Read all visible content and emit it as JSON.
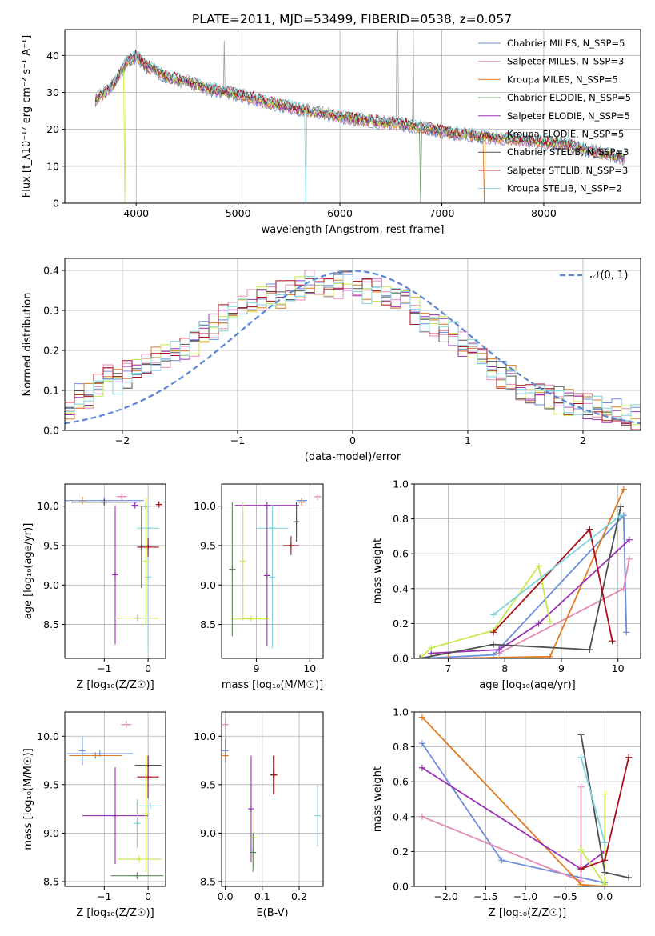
{
  "figure_title": "PLATE=2011, MJD=53499, FIBERID=0538, z=0.057",
  "colors": {
    "c0": "#6a8fdb",
    "c1": "#e58ab5",
    "c2": "#e07b20",
    "c3": "#5a8a5a",
    "c4": "#9b30b5",
    "c5": "#c8e84c",
    "c6": "#505050",
    "c7": "#a80f1a",
    "c8": "#7fd4df",
    "data": "#9e9e9e"
  },
  "chart_data": [
    {
      "id": "spectrum",
      "type": "line",
      "xlabel": "wavelength [Angstrom, rest frame]",
      "ylabel": "Flux [f_λ10⁻¹⁷ erg cm⁻² s⁻¹ A⁻¹]",
      "xlim": [
        3300,
        8950
      ],
      "ylim": [
        0,
        47
      ],
      "xticks": [
        "4000",
        "5000",
        "6000",
        "7000",
        "8000"
      ],
      "yticks": [
        "0",
        "10",
        "20",
        "30",
        "40"
      ],
      "legend": [
        "Chabrier MILES, N_SSP=5",
        "Salpeter MILES, N_SSP=3",
        "Kroupa MILES, N_SSP=5",
        "Chabrier ELODIE, N_SSP=5",
        "Salpeter ELODIE, N_SSP=5",
        "Kroupa ELODIE, N_SSP=5",
        "Chabrier STELIB, N_SSP=3",
        "Salpeter STELIB, N_SSP=3",
        "Kroupa STELIB, N_SSP=2"
      ],
      "legend_position": "upper right",
      "continuum": [
        [
          3600,
          28
        ],
        [
          3700,
          30
        ],
        [
          3800,
          33
        ],
        [
          3900,
          38
        ],
        [
          4000,
          40
        ],
        [
          4100,
          37
        ],
        [
          4200,
          36
        ],
        [
          4300,
          34
        ],
        [
          4500,
          33
        ],
        [
          4700,
          31
        ],
        [
          4900,
          30
        ],
        [
          5200,
          28
        ],
        [
          5500,
          26
        ],
        [
          5800,
          24.5
        ],
        [
          6100,
          23
        ],
        [
          6400,
          22
        ],
        [
          6600,
          21.5
        ],
        [
          6800,
          20.5
        ],
        [
          7100,
          19
        ],
        [
          7400,
          18
        ],
        [
          7800,
          17
        ],
        [
          8200,
          16
        ],
        [
          8500,
          14
        ],
        [
          8800,
          12
        ]
      ]
    },
    {
      "id": "residuals",
      "type": "line",
      "xlabel": "(data-model)/error",
      "ylabel": "Normed distribution",
      "xlim": [
        -2.5,
        2.5
      ],
      "ylim": [
        0,
        0.43
      ],
      "xticks": [
        "−2",
        "−1",
        "0",
        "1",
        "2"
      ],
      "yticks": [
        "0.0",
        "0.1",
        "0.2",
        "0.3",
        "0.4"
      ],
      "legend": [
        "𝒩(0, 1)"
      ],
      "legend_position": "upper right",
      "histogram_mean": [
        0.055,
        0.085,
        0.09,
        0.11,
        0.13,
        0.12,
        0.14,
        0.16,
        0.17,
        0.18,
        0.19,
        0.2,
        0.21,
        0.22,
        0.24,
        0.26,
        0.28,
        0.29,
        0.31,
        0.32,
        0.33,
        0.34,
        0.34,
        0.35,
        0.36,
        0.37,
        0.36,
        0.35,
        0.36,
        0.37,
        0.36,
        0.35,
        0.35,
        0.34,
        0.33,
        0.32,
        0.3,
        0.28,
        0.27,
        0.25,
        0.24,
        0.22,
        0.2,
        0.18,
        0.16,
        0.14,
        0.13,
        0.11,
        0.1,
        0.09,
        0.08,
        0.075,
        0.07,
        0.065,
        0.06,
        0.055,
        0.05,
        0.045,
        0.04,
        0.03
      ]
    },
    {
      "id": "age-metallicity",
      "type": "scatter",
      "xlabel": "Z [log₁₀(Z/Z☉)]",
      "ylabel": "age  [log₁₀(age/yr)]",
      "xlim": [
        -1.9,
        0.4
      ],
      "ylim": [
        8.07,
        10.28
      ],
      "xticks": [
        "−1",
        "0"
      ],
      "yticks": [
        "8.5",
        "9.0",
        "9.5",
        "10.0"
      ],
      "points": [
        {
          "x": -1.5,
          "y": 10.07,
          "xerr": 0.1,
          "yerr": 0.05,
          "c": "c2"
        },
        {
          "x": -0.6,
          "y": 10.12,
          "xerr": 0.12,
          "yerr": 0.02,
          "c": "c1"
        },
        {
          "x": -1.0,
          "y": 10.07,
          "xerr": 0.9,
          "yerr": 0.02,
          "c": "c0"
        },
        {
          "x": -1.0,
          "y": 10.05,
          "xerr": 0.75,
          "yerr": 0.0,
          "c": "c6"
        },
        {
          "x": -0.75,
          "y": 9.13,
          "xerr": 0.0,
          "yerr": 0.88,
          "c": "c4"
        },
        {
          "x": -0.3,
          "y": 10.01,
          "xerr": 0.0,
          "yerr": 0.0,
          "c": "c4"
        },
        {
          "x": -0.05,
          "y": 10.0,
          "xerr": 0.3,
          "yerr": 0.02,
          "c": "c6"
        },
        {
          "x": 0.25,
          "y": 10.02,
          "xerr": 0.05,
          "yerr": 0.0,
          "c": "c7"
        },
        {
          "x": 0.0,
          "y": 9.72,
          "xerr": 0.25,
          "yerr": 0.28,
          "c": "c8"
        },
        {
          "x": 0.0,
          "y": 9.1,
          "xerr": 0.0,
          "yerr": 0.93,
          "c": "c8"
        },
        {
          "x": -0.15,
          "y": 9.48,
          "xerr": 0.05,
          "yerr": 0.52,
          "c": "c6"
        },
        {
          "x": 0.0,
          "y": 9.48,
          "xerr": 0.25,
          "yerr": 0.12,
          "c": "c7"
        },
        {
          "x": -0.25,
          "y": 8.58,
          "xerr": 0.5,
          "yerr": 0.0,
          "c": "c5"
        },
        {
          "x": -0.05,
          "y": 9.3,
          "xerr": 0.0,
          "yerr": 0.8,
          "c": "c5"
        }
      ]
    },
    {
      "id": "age-mass",
      "type": "scatter",
      "xlabel": "mass [log₁₀(M/M☉)]",
      "ylabel": "",
      "xlim": [
        8.35,
        10.25
      ],
      "ylim": [
        8.07,
        10.28
      ],
      "xticks": [
        "9",
        "10"
      ],
      "yticks": [
        "8.5",
        "9.0",
        "9.5",
        "10.0"
      ],
      "points": [
        {
          "x": 10.15,
          "y": 10.12,
          "xerr": 0.05,
          "yerr": 0.02,
          "c": "c1"
        },
        {
          "x": 9.85,
          "y": 10.07,
          "xerr": 0.1,
          "yerr": 0.03,
          "c": "c0"
        },
        {
          "x": 9.2,
          "y": 10.01,
          "xerr": 0.6,
          "yerr": 0.0,
          "c": "c4"
        },
        {
          "x": 9.85,
          "y": 10.05,
          "xerr": 0.0,
          "yerr": 0.05,
          "c": "c2"
        },
        {
          "x": 9.75,
          "y": 9.8,
          "xerr": 0.05,
          "yerr": 0.25,
          "c": "c6"
        },
        {
          "x": 9.65,
          "y": 9.5,
          "xerr": 0.15,
          "yerr": 0.12,
          "c": "c7"
        },
        {
          "x": 9.3,
          "y": 9.72,
          "xerr": 0.3,
          "yerr": 0.3,
          "c": "c8"
        },
        {
          "x": 9.2,
          "y": 9.12,
          "xerr": 0.0,
          "yerr": 0.9,
          "c": "c4"
        },
        {
          "x": 8.9,
          "y": 8.57,
          "xerr": 0.35,
          "yerr": 0.0,
          "c": "c5"
        },
        {
          "x": 8.55,
          "y": 9.2,
          "xerr": 0.0,
          "yerr": 0.85,
          "c": "c3"
        },
        {
          "x": 8.75,
          "y": 9.3,
          "xerr": 0.0,
          "yerr": 0.75,
          "c": "c5"
        },
        {
          "x": 9.3,
          "y": 9.1,
          "xerr": 0.0,
          "yerr": 0.9,
          "c": "c8"
        }
      ]
    },
    {
      "id": "weight-age",
      "type": "line",
      "xlabel": "age  [log₁₀(age/yr)]",
      "ylabel": "mass weight",
      "xlim": [
        6.4,
        10.4
      ],
      "ylim": [
        0,
        1.0
      ],
      "xticks": [
        "7",
        "8",
        "9",
        "10"
      ],
      "yticks": [
        "0.0",
        "0.2",
        "0.4",
        "0.6",
        "0.8",
        "1.0"
      ],
      "series": [
        {
          "c": "c0",
          "x": [
            6.5,
            7.8,
            10.1,
            10.15
          ],
          "y": [
            0.0,
            0.02,
            0.82,
            0.15
          ]
        },
        {
          "c": "c1",
          "x": [
            7.9,
            10.1,
            10.2
          ],
          "y": [
            0.03,
            0.4,
            0.57
          ]
        },
        {
          "c": "c2",
          "x": [
            7.0,
            8.8,
            10.1
          ],
          "y": [
            0.0,
            0.01,
            0.97
          ]
        },
        {
          "c": "c4",
          "x": [
            6.7,
            7.9,
            8.6,
            10.2
          ],
          "y": [
            0.03,
            0.05,
            0.2,
            0.68
          ]
        },
        {
          "c": "c5",
          "x": [
            6.5,
            6.7,
            7.8,
            8.6,
            8.8
          ],
          "y": [
            0.0,
            0.06,
            0.16,
            0.53,
            0.21
          ]
        },
        {
          "c": "c6",
          "x": [
            6.5,
            7.8,
            9.5,
            10.05
          ],
          "y": [
            0.0,
            0.08,
            0.05,
            0.87
          ]
        },
        {
          "c": "c7",
          "x": [
            7.8,
            9.5,
            9.9
          ],
          "y": [
            0.15,
            0.74,
            0.1
          ]
        },
        {
          "c": "c8",
          "x": [
            7.8,
            10.05
          ],
          "y": [
            0.25,
            0.82
          ]
        }
      ]
    },
    {
      "id": "mass-metallicity",
      "type": "scatter",
      "xlabel": "Z [log₁₀(Z/Z☉)]",
      "ylabel": "mass [log₁₀(M/M☉)]",
      "xlim": [
        -1.9,
        0.4
      ],
      "ylim": [
        8.45,
        10.25
      ],
      "xticks": [
        "−1",
        "0"
      ],
      "yticks": [
        "8.5",
        "9.0",
        "9.5",
        "10.0"
      ],
      "points": [
        {
          "x": -0.5,
          "y": 10.12,
          "xerr": 0.12,
          "yerr": 0.04,
          "c": "c1"
        },
        {
          "x": -1.5,
          "y": 9.85,
          "xerr": 0.05,
          "yerr": 0.15,
          "c": "c0"
        },
        {
          "x": -1.1,
          "y": 9.82,
          "xerr": 0.75,
          "yerr": 0.0,
          "c": "c0"
        },
        {
          "x": -1.2,
          "y": 9.8,
          "xerr": 0.6,
          "yerr": 0.0,
          "c": "c2"
        },
        {
          "x": 0.0,
          "y": 9.7,
          "xerr": 0.3,
          "yerr": 0.1,
          "c": "c6"
        },
        {
          "x": 0.0,
          "y": 9.58,
          "xerr": 0.25,
          "yerr": 0.22,
          "c": "c7"
        },
        {
          "x": 0.05,
          "y": 9.28,
          "xerr": 0.25,
          "yerr": 0.0,
          "c": "c8"
        },
        {
          "x": -0.75,
          "y": 9.18,
          "xerr": 0.75,
          "yerr": 0.5,
          "c": "c4"
        },
        {
          "x": -0.2,
          "y": 8.73,
          "xerr": 0.5,
          "yerr": 0.0,
          "c": "c5"
        },
        {
          "x": -0.25,
          "y": 8.56,
          "xerr": 0.6,
          "yerr": 0.0,
          "c": "c3"
        },
        {
          "x": -0.05,
          "y": 9.2,
          "xerr": 0.0,
          "yerr": 0.6,
          "c": "c5"
        },
        {
          "x": -0.25,
          "y": 9.1,
          "xerr": 0.0,
          "yerr": 0.25,
          "c": "c8"
        }
      ]
    },
    {
      "id": "mass-ebv",
      "type": "scatter",
      "xlabel": "E(B-V)",
      "ylabel": "",
      "xlim": [
        -0.01,
        0.265
      ],
      "ylim": [
        8.45,
        10.25
      ],
      "xticks": [
        "0.0",
        "0.1",
        "0.2"
      ],
      "yticks": [
        "8.5",
        "9.0",
        "9.5",
        "10.0"
      ],
      "points": [
        {
          "x": 0.0,
          "y": 10.12,
          "xerr": 0.0,
          "yerr": 0.05,
          "c": "c1"
        },
        {
          "x": 0.0,
          "y": 9.85,
          "xerr": 0.0,
          "yerr": 0.12,
          "c": "c0"
        },
        {
          "x": 0.0,
          "y": 9.8,
          "xerr": 0.0,
          "yerr": 0.05,
          "c": "c2"
        },
        {
          "x": 0.07,
          "y": 9.25,
          "xerr": 0.0,
          "yerr": 0.55,
          "c": "c4"
        },
        {
          "x": 0.077,
          "y": 8.95,
          "xerr": 0.0,
          "yerr": 0.3,
          "c": "c5"
        },
        {
          "x": 0.075,
          "y": 8.8,
          "xerr": 0.0,
          "yerr": 0.2,
          "c": "c3"
        },
        {
          "x": 0.13,
          "y": 9.6,
          "xerr": 0.0,
          "yerr": 0.2,
          "c": "c6"
        },
        {
          "x": 0.132,
          "y": 9.6,
          "xerr": 0.0,
          "yerr": 0.2,
          "c": "c7"
        },
        {
          "x": 0.25,
          "y": 9.18,
          "xerr": 0.0,
          "yerr": 0.32,
          "c": "c8"
        }
      ]
    },
    {
      "id": "weight-metallicity",
      "type": "line",
      "xlabel": "Z [log₁₀(Z/Z☉)]",
      "ylabel": "mass weight",
      "xlim": [
        -2.4,
        0.45
      ],
      "ylim": [
        0,
        1.0
      ],
      "xticks": [
        "−2.0",
        "−1.5",
        "−1.0",
        "−0.5",
        "0.0"
      ],
      "yticks": [
        "0.0",
        "0.2",
        "0.4",
        "0.6",
        "0.8",
        "1.0"
      ],
      "series": [
        {
          "c": "c0",
          "x": [
            -2.3,
            -1.3,
            0.0
          ],
          "y": [
            0.82,
            0.15,
            0.02
          ]
        },
        {
          "c": "c1",
          "x": [
            -2.3,
            -0.3,
            -0.3
          ],
          "y": [
            0.4,
            0.03,
            0.57
          ]
        },
        {
          "c": "c2",
          "x": [
            -2.3,
            -0.3,
            0.0
          ],
          "y": [
            0.97,
            0.01,
            0.0
          ]
        },
        {
          "c": "c4",
          "x": [
            -2.3,
            -0.3,
            0.0
          ],
          "y": [
            0.68,
            0.1,
            0.2
          ]
        },
        {
          "c": "c5",
          "x": [
            -0.3,
            0.0,
            0.0
          ],
          "y": [
            0.21,
            0.01,
            0.53
          ]
        },
        {
          "c": "c6",
          "x": [
            -0.3,
            0.0,
            0.3
          ],
          "y": [
            0.87,
            0.08,
            0.05
          ]
        },
        {
          "c": "c7",
          "x": [
            -0.3,
            0.0,
            0.3
          ],
          "y": [
            0.1,
            0.15,
            0.74
          ]
        },
        {
          "c": "c8",
          "x": [
            -0.3,
            0.0
          ],
          "y": [
            0.74,
            0.25
          ]
        }
      ]
    }
  ]
}
